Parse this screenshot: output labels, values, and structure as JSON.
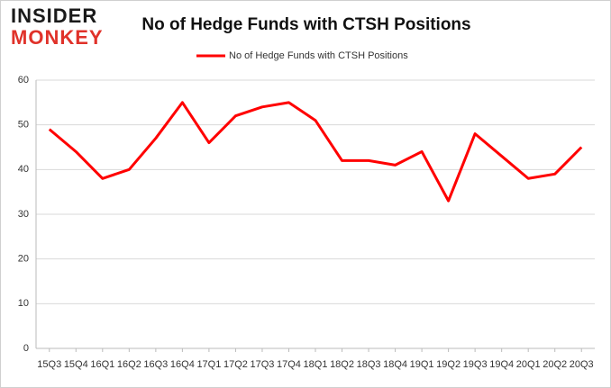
{
  "logo": {
    "line1": "INSIDER",
    "line2": "MONKEY"
  },
  "chart_data": {
    "type": "line",
    "title": "No of Hedge Funds with CTSH Positions",
    "categories": [
      "15Q3",
      "15Q4",
      "16Q1",
      "16Q2",
      "16Q3",
      "16Q4",
      "17Q1",
      "17Q2",
      "17Q3",
      "17Q4",
      "18Q1",
      "18Q2",
      "18Q3",
      "18Q4",
      "19Q1",
      "19Q2",
      "19Q3",
      "19Q4",
      "20Q1",
      "20Q2",
      "20Q3"
    ],
    "series": [
      {
        "name": "No of Hedge Funds with CTSH Positions",
        "color": "#ff0000",
        "values": [
          49,
          44,
          38,
          40,
          47,
          55,
          46,
          52,
          54,
          55,
          51,
          42,
          42,
          41,
          44,
          33,
          48,
          43,
          38,
          39,
          45
        ]
      }
    ],
    "ylim": [
      0,
      60
    ],
    "yticks": [
      0,
      10,
      20,
      30,
      40,
      50,
      60
    ],
    "grid": true,
    "legend": "top"
  }
}
